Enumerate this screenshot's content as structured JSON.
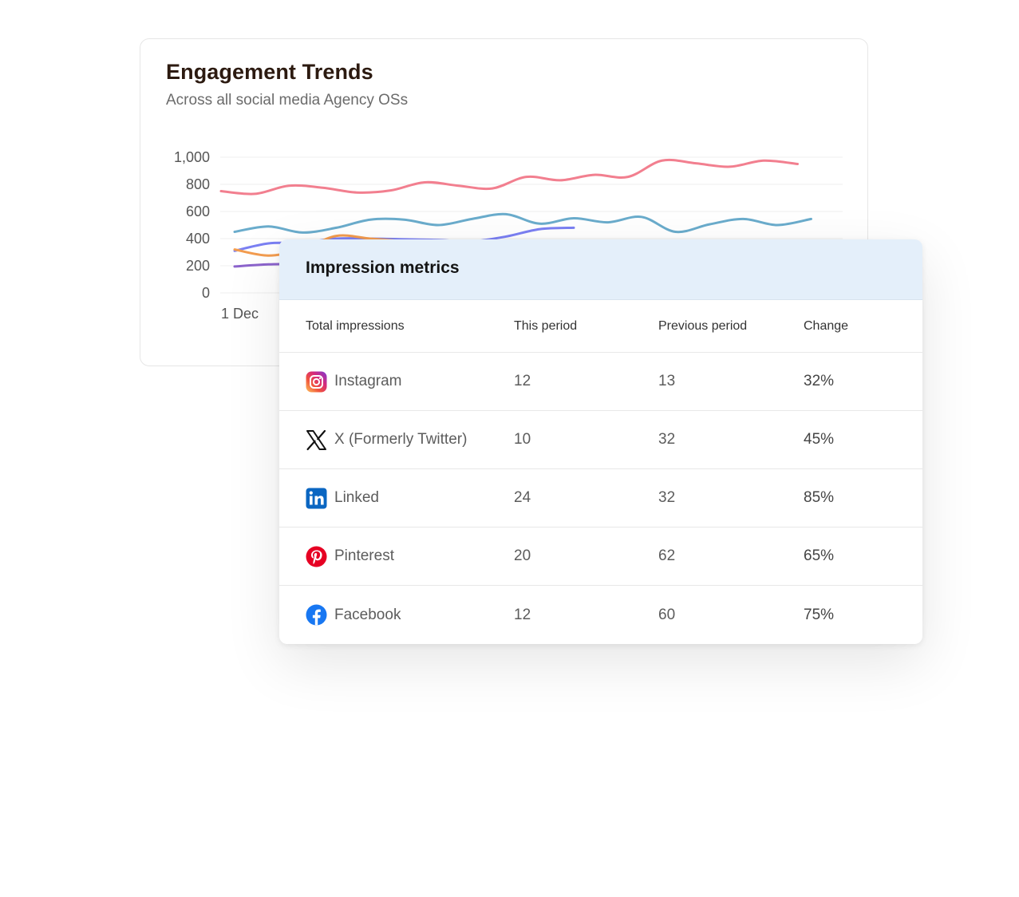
{
  "chart_card": {
    "title": "Engagement Trends",
    "subtitle": "Across all social media Agency OSs"
  },
  "chart_data": {
    "type": "line",
    "ylim": [
      0,
      1000
    ],
    "y_ticks": [
      "1,000",
      "800",
      "600",
      "400",
      "200",
      "0"
    ],
    "x_tick_visible": "1 Dec",
    "grid": true,
    "series": [
      {
        "color": "#f27f8f",
        "values": [
          750,
          730,
          790,
          775,
          740,
          755,
          815,
          790,
          770,
          855,
          830,
          870,
          855,
          975,
          955,
          930,
          975,
          950
        ]
      },
      {
        "color": "#6aaccc",
        "values": [
          450,
          490,
          445,
          480,
          540,
          540,
          500,
          545,
          580,
          510,
          550,
          520,
          560,
          450,
          505,
          545,
          500,
          545
        ]
      },
      {
        "color": "#7b80f3",
        "values": [
          310,
          365,
          370,
          400,
          400,
          395,
          390,
          380,
          415,
          470,
          480
        ]
      },
      {
        "color": "#f39c4f",
        "values": [
          320,
          275,
          320,
          420,
          400,
          380
        ]
      },
      {
        "color": "#8c64cc",
        "values": [
          195,
          210,
          215
        ]
      }
    ]
  },
  "table": {
    "title": "Impression metrics",
    "headers": [
      "Total impressions",
      "This period",
      "Previous period",
      "Change"
    ],
    "rows": [
      {
        "icon": "instagram-icon",
        "platform": "Instagram",
        "this": "12",
        "previous": "13",
        "change": "32%"
      },
      {
        "icon": "x-twitter-icon",
        "platform": "X (Formerly Twitter)",
        "this": "10",
        "previous": "32",
        "change": "45%"
      },
      {
        "icon": "linkedin-icon",
        "platform": "Linked",
        "this": "24",
        "previous": "32",
        "change": "85%"
      },
      {
        "icon": "pinterest-icon",
        "platform": "Pinterest",
        "this": "20",
        "previous": "62",
        "change": "65%"
      },
      {
        "icon": "facebook-icon",
        "platform": "Facebook",
        "this": "12",
        "previous": "60",
        "change": "75%"
      }
    ]
  }
}
